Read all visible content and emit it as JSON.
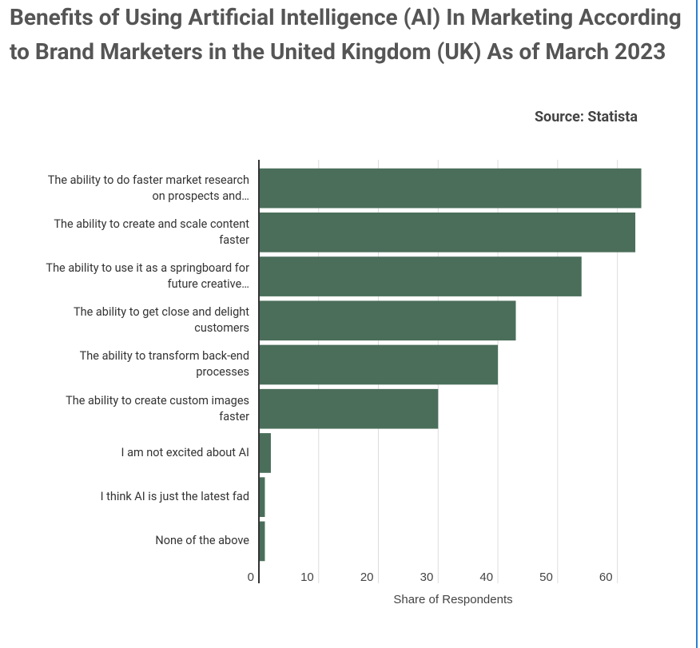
{
  "chart_data": {
    "type": "bar",
    "orientation": "horizontal",
    "title": "Benefits of Using Artificial Intelligence (AI) In Marketing According to Brand Marketers in the United Kingdom (UK) As of March 2023",
    "source": "Source: Statista",
    "x_label": "Share of Respondents",
    "categories": [
      "The ability to do faster market research on prospects and…",
      "The ability to create and scale content faster",
      "The ability to use it as a springboard for future creative…",
      "The ability to get close and delight customers",
      "The ability to transform back-end processes",
      "The ability to create custom images faster",
      "I am not excited about AI",
      "I think AI is just the latest fad",
      "None of the above"
    ],
    "values": [
      64,
      63,
      54,
      43,
      40,
      30,
      2,
      1,
      1
    ],
    "color": "#4a6e5a",
    "xlim": [
      0,
      65
    ],
    "xticks": [
      0,
      10,
      20,
      30,
      40,
      50,
      60
    ],
    "grid": true
  }
}
